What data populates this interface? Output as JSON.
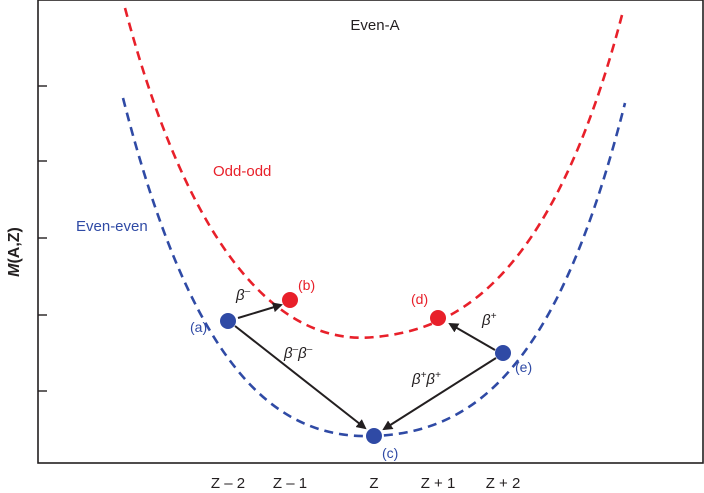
{
  "title": "Even-A",
  "ylabel": "M(A,Z)",
  "ylabel_italic_part": "M",
  "ylabel_rest": "(A,Z)",
  "x_ticks": [
    "Z – 2",
    "Z – 1",
    "Z",
    "Z + 1",
    "Z + 2"
  ],
  "curves": {
    "odd_odd": {
      "label": "Odd-odd",
      "color": "#e8202a"
    },
    "even_even": {
      "label": "Even-even",
      "color": "#2f4aa5"
    }
  },
  "points": [
    {
      "id": "a",
      "label": "(a)",
      "series": "even_even",
      "z_tick": "Z – 2"
    },
    {
      "id": "b",
      "label": "(b)",
      "series": "odd_odd",
      "z_tick": "Z – 1"
    },
    {
      "id": "c",
      "label": "(c)",
      "series": "even_even",
      "z_tick": "Z"
    },
    {
      "id": "d",
      "label": "(d)",
      "series": "odd_odd",
      "z_tick": "Z + 1"
    },
    {
      "id": "e",
      "label": "(e)",
      "series": "even_even",
      "z_tick": "Z + 2"
    }
  ],
  "transitions": [
    {
      "from": "a",
      "to": "b",
      "label_base": "β",
      "label_sup": "–"
    },
    {
      "from": "a",
      "to": "c",
      "label_base": "β",
      "label_sup": "–",
      "label_base2": "β",
      "label_sup2": "–"
    },
    {
      "from": "e",
      "to": "d",
      "label_base": "β",
      "label_sup": "+"
    },
    {
      "from": "e",
      "to": "c",
      "label_base": "β",
      "label_sup": "+",
      "label_base2": "β",
      "label_sup2": "+"
    }
  ],
  "colors": {
    "axis": "#231f20",
    "arrow": "#231f20"
  }
}
